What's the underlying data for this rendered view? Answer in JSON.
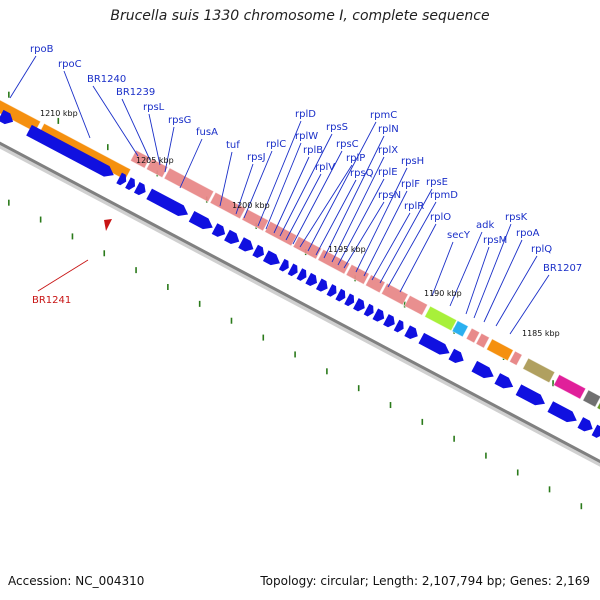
{
  "title": "Brucella suis 1330 chromosome I, complete sequence",
  "footer": {
    "accession": "Accession: NC_004310",
    "summary": "Topology: circular; Length: 2,107,794 bp; Genes: 2,169"
  },
  "colors": {
    "label": "#1a2fc8",
    "highlight": "#c81414",
    "cds": "#1010e0",
    "ribosomal": "#e88a8a",
    "rpoBC": "#f5900f",
    "secY": "#a8f03a",
    "adk": "#2ab0f0",
    "tick": "#2a7a1a",
    "backbone": "#808080"
  },
  "kbp_markers": [
    "1210 kbp",
    "1205 kbp",
    "1200 kbp",
    "1195 kbp",
    "1190 kbp",
    "1185 kbp"
  ],
  "genes": [
    {
      "name": "rpoB",
      "highlight": false
    },
    {
      "name": "rpoC",
      "highlight": false
    },
    {
      "name": "BR1240",
      "highlight": false
    },
    {
      "name": "BR1239",
      "highlight": false
    },
    {
      "name": "rpsL",
      "highlight": false
    },
    {
      "name": "rpsG",
      "highlight": false
    },
    {
      "name": "fusA",
      "highlight": false
    },
    {
      "name": "tuf",
      "highlight": false
    },
    {
      "name": "rpsJ",
      "highlight": false
    },
    {
      "name": "rplC",
      "highlight": false
    },
    {
      "name": "rplD",
      "highlight": false
    },
    {
      "name": "rplW",
      "highlight": false
    },
    {
      "name": "rplB",
      "highlight": false
    },
    {
      "name": "rpsS",
      "highlight": false
    },
    {
      "name": "rplV",
      "highlight": false
    },
    {
      "name": "rpsC",
      "highlight": false
    },
    {
      "name": "rplP",
      "highlight": false
    },
    {
      "name": "rpmC",
      "highlight": false
    },
    {
      "name": "rpsQ",
      "highlight": false
    },
    {
      "name": "rplN",
      "highlight": false
    },
    {
      "name": "rplX",
      "highlight": false
    },
    {
      "name": "rplE",
      "highlight": false
    },
    {
      "name": "rpsN",
      "highlight": false
    },
    {
      "name": "rpsH",
      "highlight": false
    },
    {
      "name": "rplF",
      "highlight": false
    },
    {
      "name": "rplR",
      "highlight": false
    },
    {
      "name": "rpsE",
      "highlight": false
    },
    {
      "name": "rpmD",
      "highlight": false
    },
    {
      "name": "rplO",
      "highlight": false
    },
    {
      "name": "secY",
      "highlight": false
    },
    {
      "name": "adk",
      "highlight": false
    },
    {
      "name": "rpsM",
      "highlight": false
    },
    {
      "name": "rpsK",
      "highlight": false
    },
    {
      "name": "rpoA",
      "highlight": false
    },
    {
      "name": "rplQ",
      "highlight": false
    },
    {
      "name": "BR1207",
      "highlight": false
    },
    {
      "name": "BR1241",
      "highlight": true
    }
  ]
}
